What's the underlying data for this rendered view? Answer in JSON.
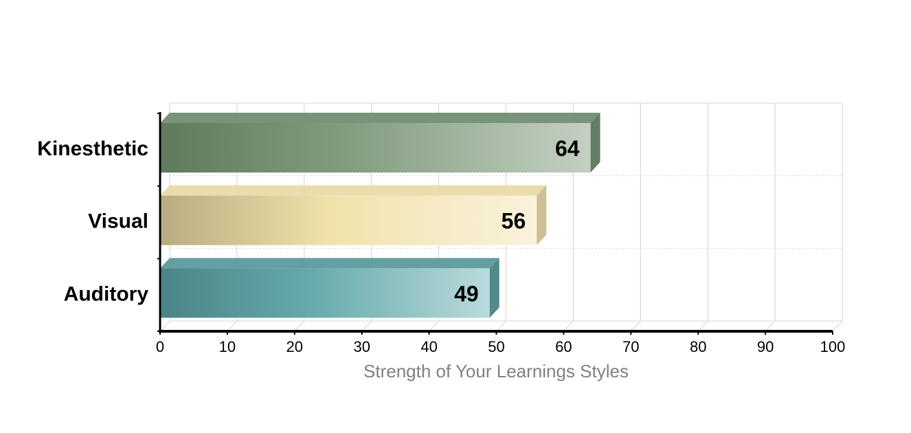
{
  "chart_data": {
    "type": "bar",
    "orientation": "horizontal",
    "style": "3d",
    "categories": [
      "Kinesthetic",
      "Visual",
      "Auditory"
    ],
    "values": [
      64,
      56,
      49
    ],
    "colors": [
      "#6e8a6c",
      "#e9d9a6",
      "#57979a"
    ],
    "title": "",
    "xlabel": "Strength of Your Learnings Styles",
    "ylabel": "",
    "xlim": [
      0,
      100
    ],
    "xticks": [
      "0",
      "10",
      "20",
      "30",
      "40",
      "50",
      "60",
      "70",
      "80",
      "90",
      "100"
    ],
    "grid": true,
    "data_labels": true
  }
}
